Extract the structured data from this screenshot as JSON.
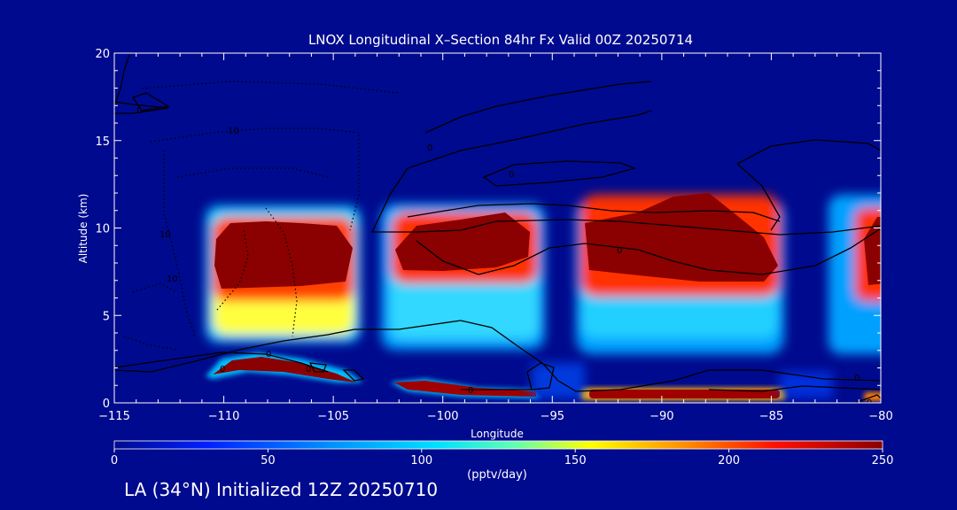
{
  "chart_data": {
    "type": "heatmap",
    "title": "LNOX Longitudinal X–Section 84hr  Fx Valid 00Z 20250714",
    "xlabel": "Longitude",
    "ylabel": "Altitude (km)",
    "xlim": [
      -115,
      -80
    ],
    "ylim": [
      0,
      20
    ],
    "x_ticks": [
      -115,
      -110,
      -105,
      -100,
      -95,
      -90,
      -85,
      -80
    ],
    "x_tick_labels": [
      "−115",
      "−110",
      "−105",
      "−100",
      "−95",
      "−90",
      "−85",
      "−80"
    ],
    "y_ticks": [
      0,
      5,
      10,
      15,
      20
    ],
    "y_tick_labels": [
      "0",
      "5",
      "10",
      "15",
      "20"
    ],
    "colorbar": {
      "min": 0,
      "max": 250,
      "ticks": [
        0,
        50,
        100,
        150,
        200,
        250
      ],
      "tick_labels": [
        "0",
        "50",
        "100",
        "150",
        "200",
        "250"
      ],
      "unit": "(pptv/day)",
      "colors": [
        "#000a8e",
        "#0030ff",
        "#00b4ff",
        "#30ffd0",
        "#ffff00",
        "#ff8000",
        "#e00000",
        "#8b0000"
      ]
    },
    "cells": [
      {
        "lon_range": [
          -109.5,
          -104.5
        ],
        "alt_range": [
          4.0,
          11.0
        ],
        "max": 250
      },
      {
        "lon_range": [
          -109.5,
          -104.5
        ],
        "alt_range": [
          5.0,
          6.5
        ],
        "value": 150
      },
      {
        "lon_range": [
          -109.5,
          -102.5
        ],
        "alt_range": [
          1.3,
          2.8
        ],
        "max": 250
      },
      {
        "lon_range": [
          -102.5,
          -94.5
        ],
        "alt_range": [
          3.5,
          11.0
        ],
        "max": 250
      },
      {
        "lon_range": [
          -102.5,
          -95.0
        ],
        "alt_range": [
          0.3,
          1.5
        ],
        "max": 250
      },
      {
        "lon_range": [
          -94.0,
          -84.5
        ],
        "alt_range": [
          3.0,
          12.0
        ],
        "max": 250
      },
      {
        "lon_range": [
          -93.0,
          -85.0
        ],
        "alt_range": [
          0.2,
          0.9
        ],
        "max": 250
      },
      {
        "lon_range": [
          -83.0,
          -80.0
        ],
        "alt_range": [
          3.5,
          12.0
        ],
        "max": 250
      }
    ],
    "contour_labels": [
      "0",
      "0",
      "0",
      "0",
      "0",
      "0",
      "0",
      "0",
      "10",
      "10",
      "10",
      "0",
      "0"
    ]
  },
  "footer": "LA (34°N) Initialized 12Z 20250710"
}
